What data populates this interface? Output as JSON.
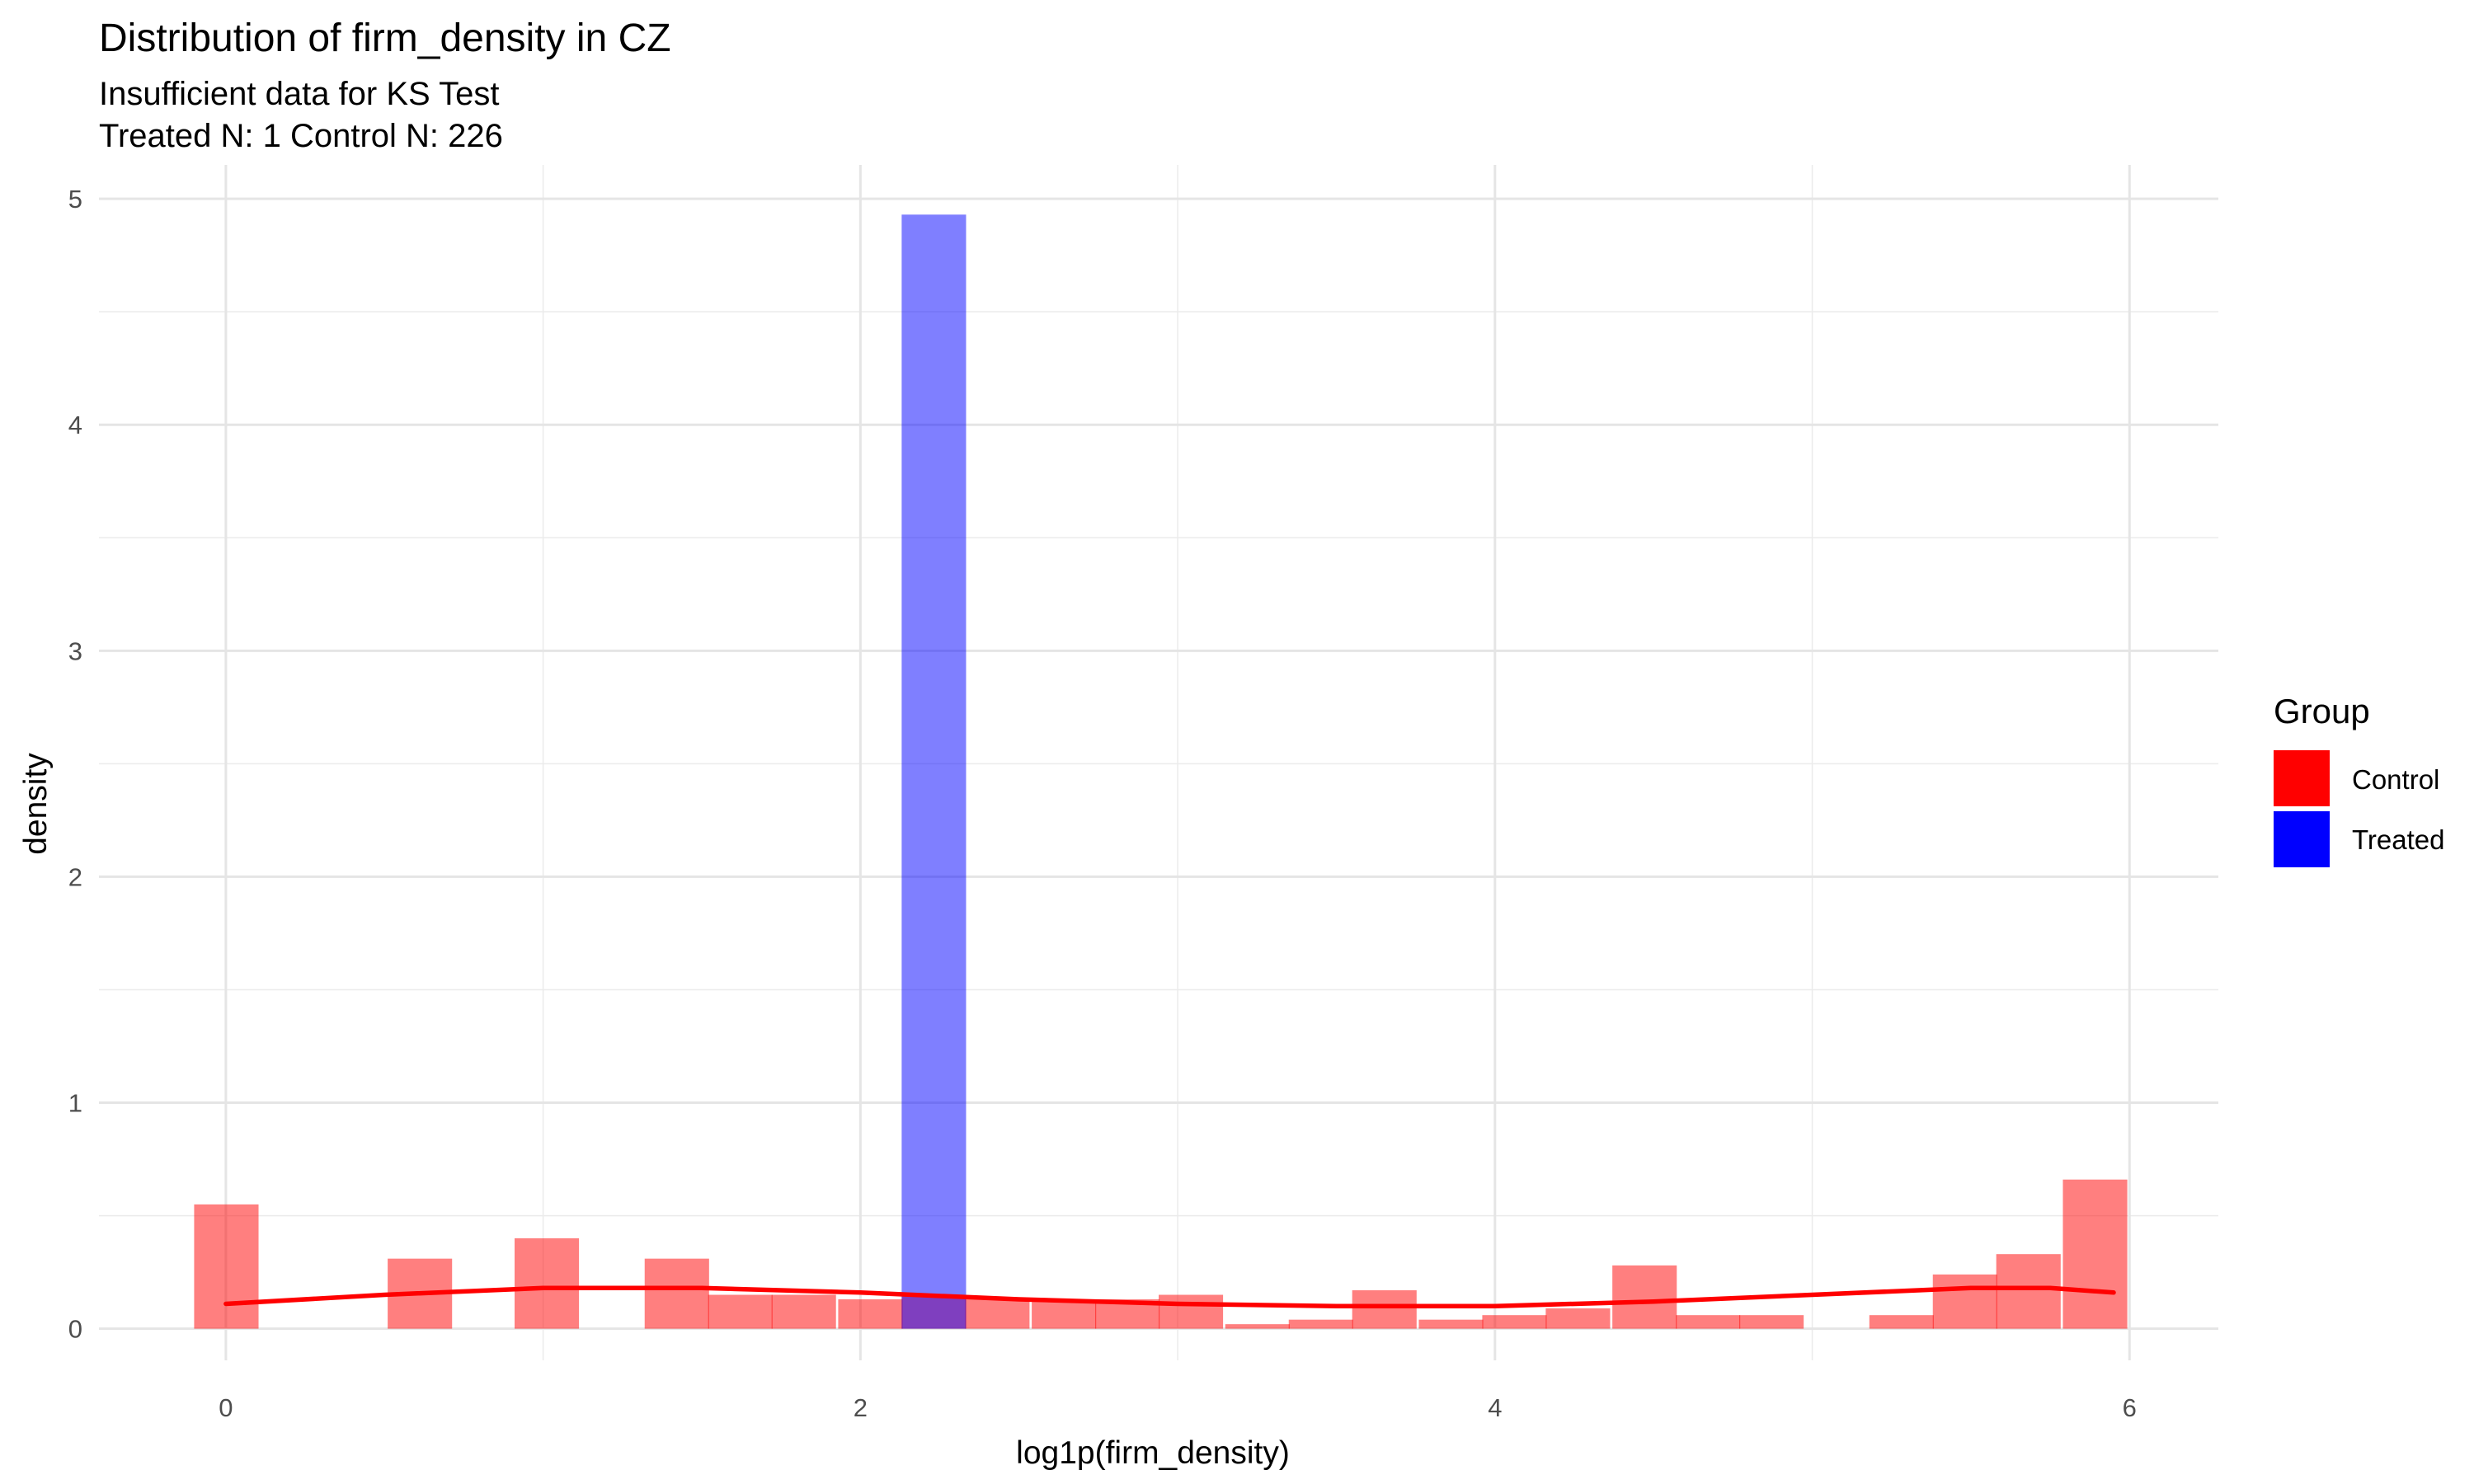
{
  "chart_data": {
    "type": "bar",
    "title": "Distribution of firm_density in CZ",
    "subtitle": [
      "Insufficient data for KS Test",
      "Treated N: 1 Control N: 226"
    ],
    "xlabel": "log1p(firm_density)",
    "ylabel": "density",
    "xlim": [
      -0.4,
      6.28
    ],
    "ylim": [
      -0.14,
      5.15
    ],
    "x_ticks": [
      0,
      2,
      4,
      6
    ],
    "y_ticks": [
      0,
      1,
      2,
      3,
      4,
      5
    ],
    "grid": true,
    "legend": {
      "title": "Group",
      "placement": "right",
      "entries": [
        {
          "name": "Control",
          "color": "#ff0000"
        },
        {
          "name": "Treated",
          "color": "#0000ff"
        }
      ]
    },
    "series": [
      {
        "name": "Control",
        "color": "#ff0000",
        "bin_width": 0.203,
        "bins": [
          {
            "x0": -0.1,
            "value": 0.55
          },
          {
            "x0": 0.51,
            "value": 0.31
          },
          {
            "x0": 0.91,
            "value": 0.4
          },
          {
            "x0": 1.32,
            "value": 0.31
          },
          {
            "x0": 1.52,
            "value": 0.15
          },
          {
            "x0": 1.72,
            "value": 0.15
          },
          {
            "x0": 1.93,
            "value": 0.13
          },
          {
            "x0": 2.13,
            "value": 0.15
          },
          {
            "x0": 2.33,
            "value": 0.13
          },
          {
            "x0": 2.54,
            "value": 0.13
          },
          {
            "x0": 2.74,
            "value": 0.13
          },
          {
            "x0": 2.94,
            "value": 0.15
          },
          {
            "x0": 3.15,
            "value": 0.02
          },
          {
            "x0": 3.35,
            "value": 0.04
          },
          {
            "x0": 3.55,
            "value": 0.17
          },
          {
            "x0": 3.76,
            "value": 0.04
          },
          {
            "x0": 3.96,
            "value": 0.06
          },
          {
            "x0": 4.16,
            "value": 0.09
          },
          {
            "x0": 4.37,
            "value": 0.28
          },
          {
            "x0": 4.57,
            "value": 0.06
          },
          {
            "x0": 4.77,
            "value": 0.06
          },
          {
            "x0": 5.18,
            "value": 0.06
          },
          {
            "x0": 5.38,
            "value": 0.24
          },
          {
            "x0": 5.58,
            "value": 0.33
          },
          {
            "x0": 5.79,
            "value": 0.66
          }
        ],
        "density_curve": {
          "x": [
            0,
            0.5,
            1.0,
            1.5,
            2.0,
            2.5,
            3.0,
            3.5,
            4.0,
            4.5,
            5.0,
            5.5,
            5.75,
            5.95
          ],
          "y": [
            0.11,
            0.15,
            0.18,
            0.18,
            0.16,
            0.13,
            0.11,
            0.1,
            0.1,
            0.12,
            0.15,
            0.18,
            0.18,
            0.16
          ]
        }
      },
      {
        "name": "Treated",
        "color": "#0000ff",
        "bin_width": 0.203,
        "bins": [
          {
            "x0": 2.13,
            "value": 4.93
          }
        ]
      }
    ]
  }
}
